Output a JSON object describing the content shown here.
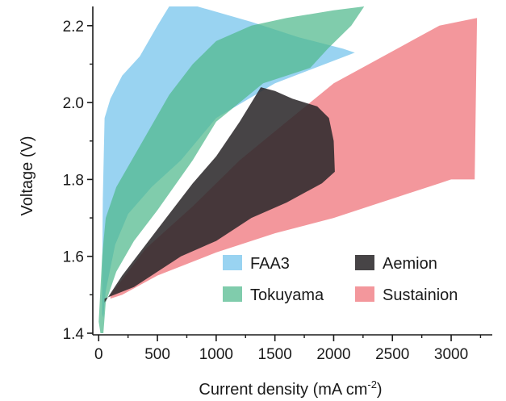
{
  "chart_data": {
    "type": "area",
    "xlabel": "Current density (mA cm",
    "xlabel_sup": "-2",
    "xlabel_end": ")",
    "ylabel": "Voltage (V)",
    "xlim": [
      -50,
      3350
    ],
    "ylim": [
      1.4,
      2.25
    ],
    "x_ticks": [
      0,
      500,
      1000,
      1500,
      2000,
      2500,
      3000
    ],
    "x_tick_labels": [
      "0",
      "500",
      "1000",
      "1500",
      "2000",
      "2500",
      "3000"
    ],
    "y_ticks": [
      1.4,
      1.6,
      1.8,
      2.0,
      2.2
    ],
    "y_tick_labels": [
      "1.4",
      "1.6",
      "1.8",
      "2.0",
      "2.2"
    ],
    "legend_position": "bottom-right",
    "series": [
      {
        "name": "Sustainion",
        "color": "#ef7a80",
        "opacity": 0.78,
        "polygon": [
          [
            100,
            1.5
          ],
          [
            400,
            1.62
          ],
          [
            800,
            1.73
          ],
          [
            1200,
            1.85
          ],
          [
            1600,
            1.95
          ],
          [
            2000,
            2.05
          ],
          [
            2300,
            2.1
          ],
          [
            2600,
            2.15
          ],
          [
            2900,
            2.2
          ],
          [
            3220,
            2.22
          ],
          [
            3200,
            1.8
          ],
          [
            3000,
            1.8
          ],
          [
            2900,
            1.79
          ],
          [
            2500,
            1.75
          ],
          [
            2000,
            1.7
          ],
          [
            1500,
            1.66
          ],
          [
            1000,
            1.61
          ],
          [
            500,
            1.55
          ],
          [
            200,
            1.5
          ],
          [
            100,
            1.49
          ]
        ]
      },
      {
        "name": "FAA3",
        "color": "#7fc8ee",
        "opacity": 0.8,
        "polygon": [
          [
            30,
            1.45
          ],
          [
            30,
            1.55
          ],
          [
            35,
            1.75
          ],
          [
            50,
            1.96
          ],
          [
            100,
            2.01
          ],
          [
            200,
            2.07
          ],
          [
            350,
            2.12
          ],
          [
            500,
            2.2
          ],
          [
            600,
            2.25
          ],
          [
            840,
            2.25
          ],
          [
            1300,
            2.21
          ],
          [
            1700,
            2.17
          ],
          [
            2080,
            2.14
          ],
          [
            2180,
            2.13
          ],
          [
            1500,
            2.05
          ],
          [
            1000,
            1.96
          ],
          [
            700,
            1.85
          ],
          [
            450,
            1.78
          ],
          [
            250,
            1.71
          ],
          [
            140,
            1.63
          ],
          [
            60,
            1.51
          ],
          [
            40,
            1.44
          ]
        ]
      },
      {
        "name": "Tokuyama",
        "color": "#4fb88c",
        "opacity": 0.72,
        "polygon": [
          [
            0,
            1.43
          ],
          [
            30,
            1.6
          ],
          [
            60,
            1.7
          ],
          [
            150,
            1.78
          ],
          [
            300,
            1.86
          ],
          [
            450,
            1.94
          ],
          [
            600,
            2.02
          ],
          [
            800,
            2.1
          ],
          [
            1000,
            2.16
          ],
          [
            1300,
            2.2
          ],
          [
            1600,
            2.22
          ],
          [
            2000,
            2.24
          ],
          [
            2260,
            2.25
          ],
          [
            2150,
            2.2
          ],
          [
            1950,
            2.14
          ],
          [
            1800,
            2.09
          ],
          [
            1400,
            2.05
          ],
          [
            1000,
            1.95
          ],
          [
            800,
            1.85
          ],
          [
            500,
            1.72
          ],
          [
            300,
            1.64
          ],
          [
            150,
            1.56
          ],
          [
            60,
            1.48
          ],
          [
            40,
            1.4
          ],
          [
            15,
            1.4
          ]
        ]
      },
      {
        "name": "Aemion",
        "color": "#2e2a2c",
        "opacity": 0.88,
        "polygon": [
          [
            50,
            1.48
          ],
          [
            200,
            1.55
          ],
          [
            400,
            1.63
          ],
          [
            600,
            1.71
          ],
          [
            800,
            1.79
          ],
          [
            1000,
            1.86
          ],
          [
            1200,
            1.95
          ],
          [
            1380,
            2.04
          ],
          [
            1500,
            2.03
          ],
          [
            1650,
            2.01
          ],
          [
            1860,
            1.99
          ],
          [
            1960,
            1.96
          ],
          [
            2000,
            1.9
          ],
          [
            2010,
            1.82
          ],
          [
            1900,
            1.79
          ],
          [
            1600,
            1.74
          ],
          [
            1300,
            1.7
          ],
          [
            1000,
            1.64
          ],
          [
            700,
            1.6
          ],
          [
            300,
            1.52
          ],
          [
            50,
            1.49
          ]
        ]
      }
    ],
    "legend": [
      {
        "name": "FAA3",
        "color": "#7fc8ee"
      },
      {
        "name": "Aemion",
        "color": "#2e2a2c"
      },
      {
        "name": "Tokuyama",
        "color": "#4fb88c"
      },
      {
        "name": "Sustainion",
        "color": "#ef7a80"
      }
    ]
  }
}
